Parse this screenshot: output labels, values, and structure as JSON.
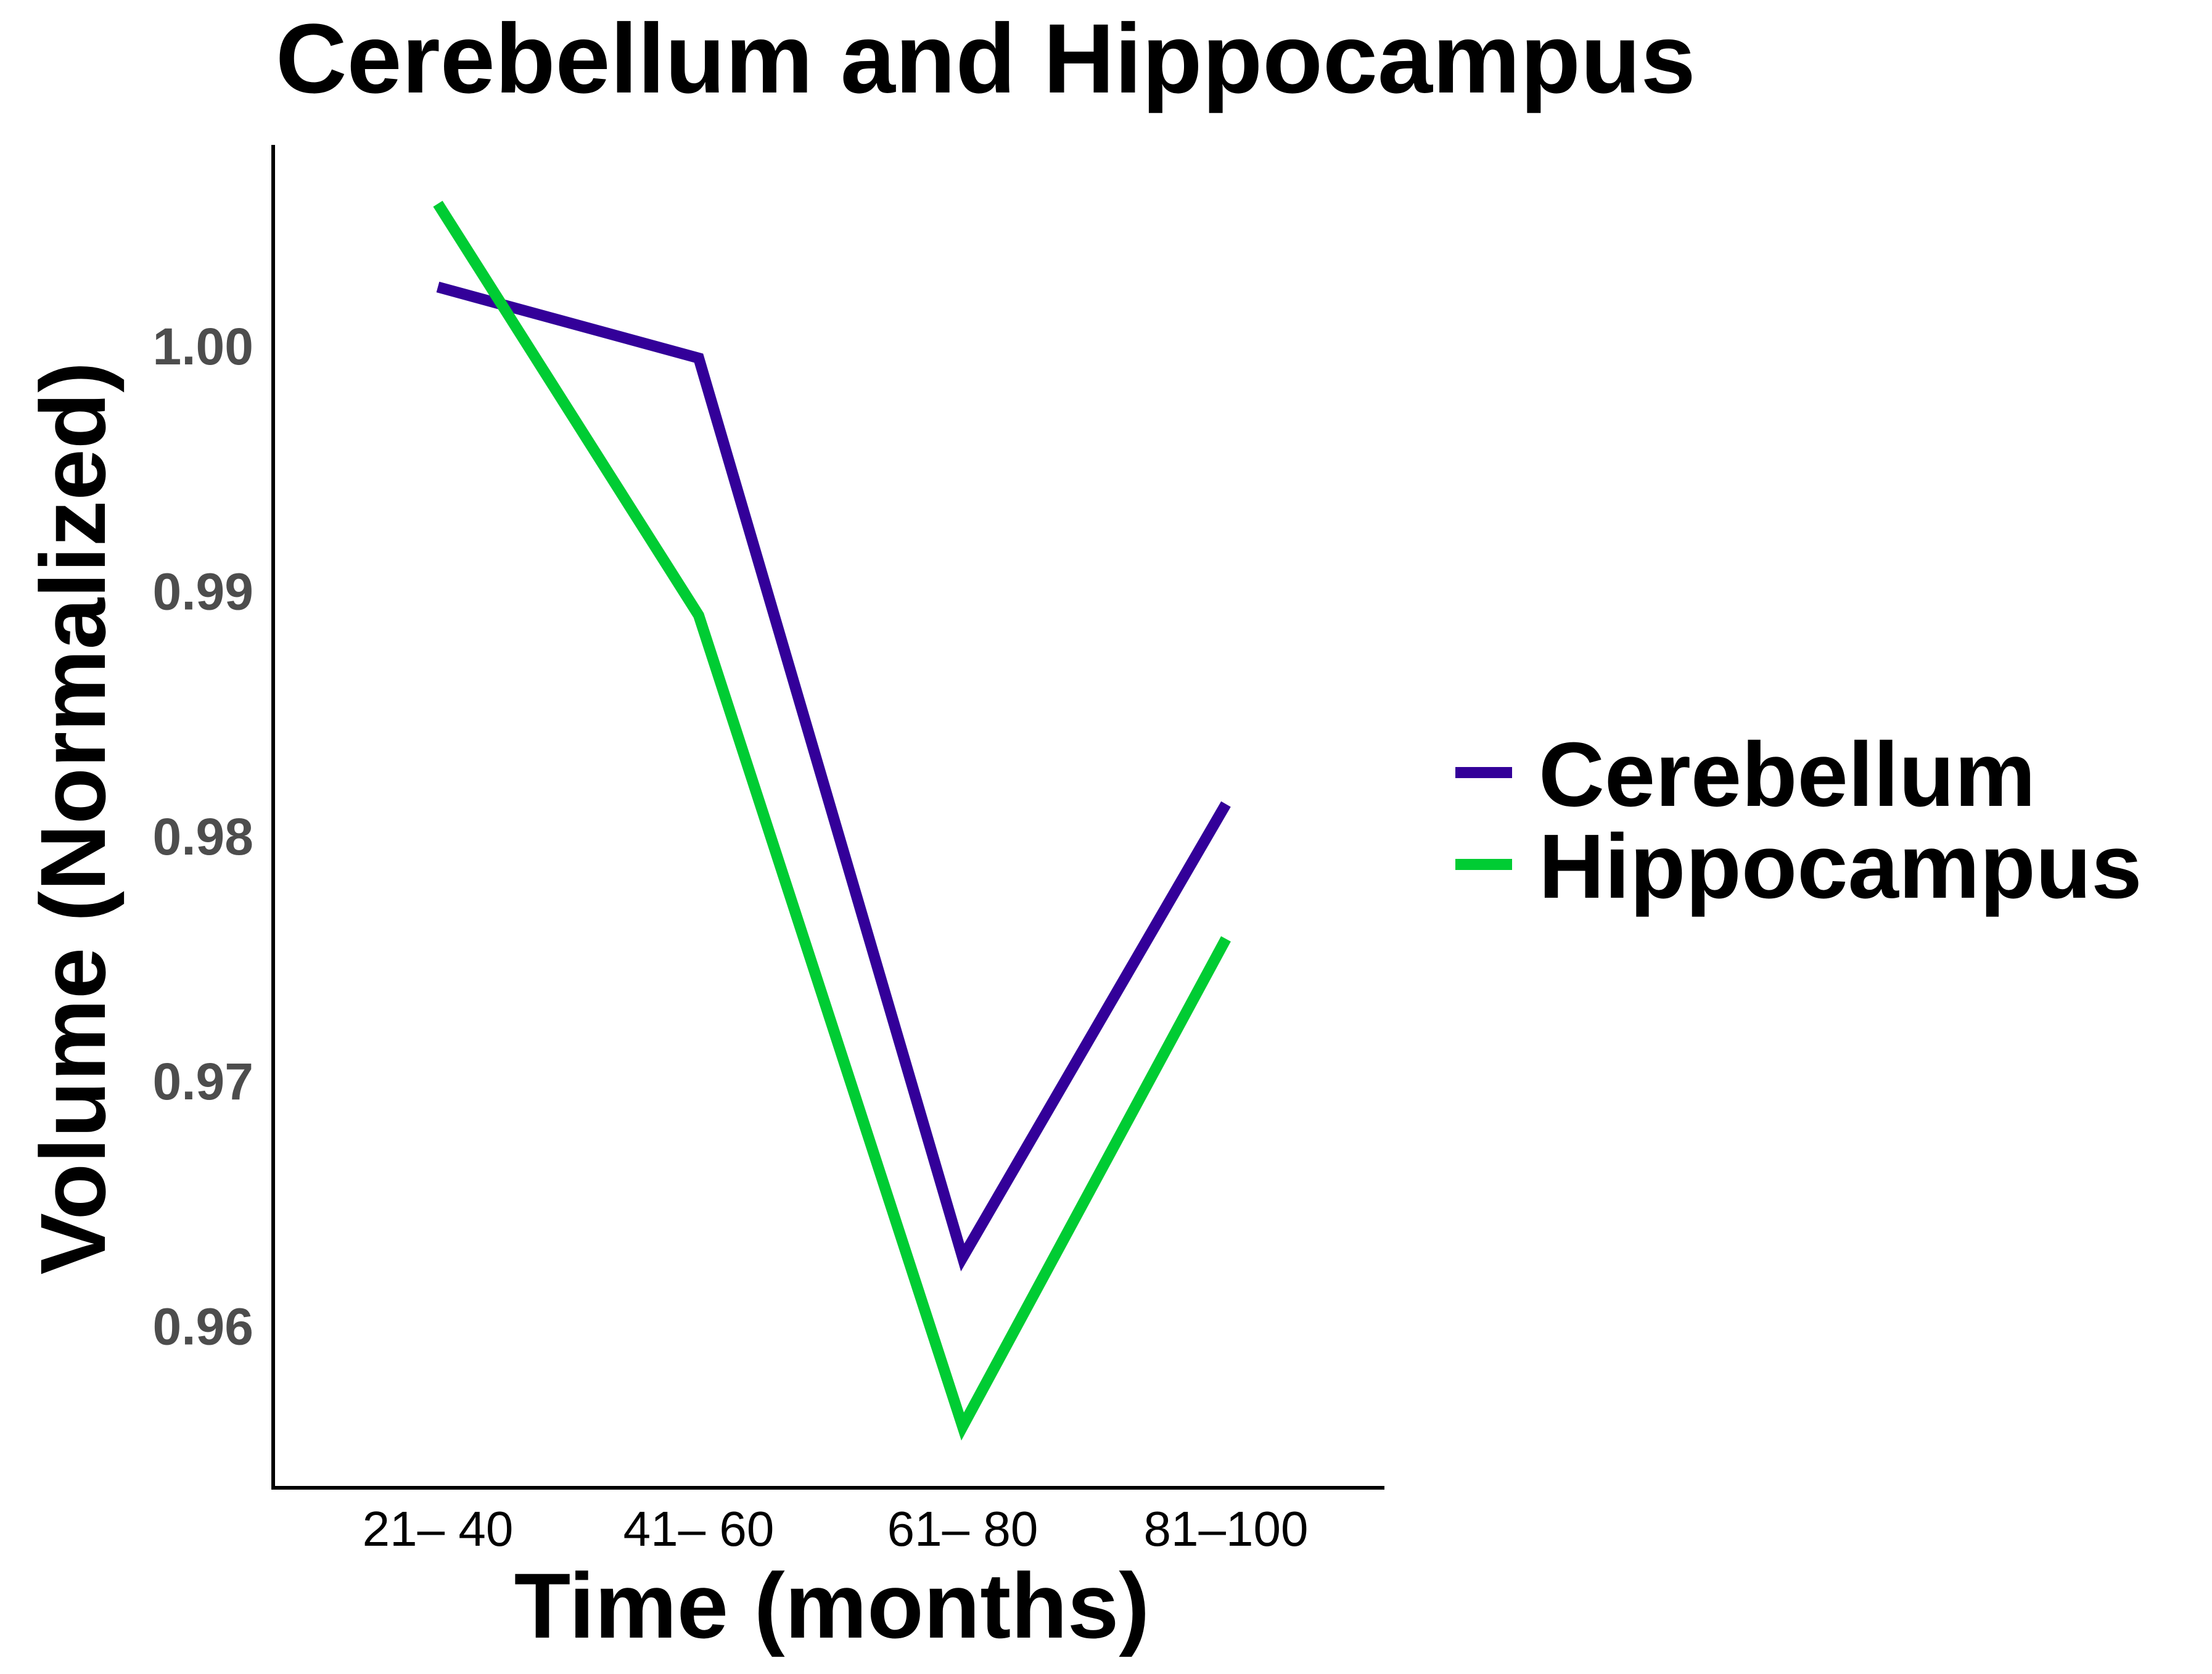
{
  "chart_data": {
    "type": "line",
    "title": "Cerebellum and Hippocampus",
    "xlabel": "Time (months)",
    "ylabel": "Volume (Normalized)",
    "categories": [
      "21– 40",
      "41– 60",
      "61– 80",
      "81–100"
    ],
    "series": [
      {
        "name": "Cerebellum",
        "color": "#330099",
        "values": [
          1.0024,
          0.9995,
          0.9628,
          0.9813
        ]
      },
      {
        "name": "Hippocampus",
        "color": "#00cc33",
        "values": [
          1.0058,
          0.989,
          0.9559,
          0.9758
        ]
      }
    ],
    "yticks": [
      1.0,
      0.99,
      0.98,
      0.97,
      0.96
    ],
    "ytick_labels": [
      "1.00",
      "0.99",
      "0.98",
      "0.97",
      "0.96"
    ],
    "ylim": [
      0.9534,
      1.0082
    ],
    "grid": false,
    "legend": "right"
  }
}
